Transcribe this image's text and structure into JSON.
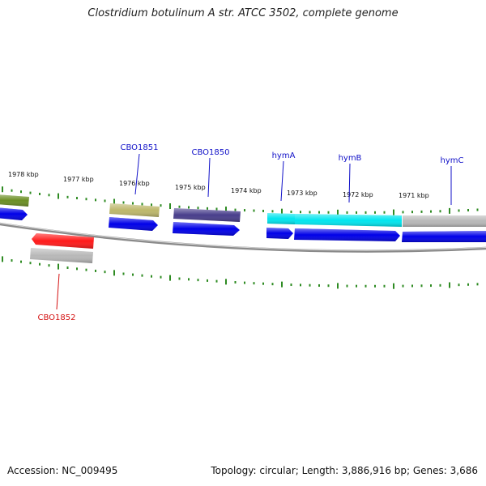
{
  "title": "Clostridium botulinum A str. ATCC 3502, complete genome",
  "footer": {
    "accession": "Accession: NC_009495",
    "summary": "Topology: circular; Length: 3,886,916 bp; Genes: 3,686"
  },
  "scale": {
    "ticks": [
      "1978 kbp",
      "1977 kbp",
      "1976 kbp",
      "1975 kbp",
      "1974 kbp",
      "1973 kbp",
      "1972 kbp",
      "1971 kbp"
    ]
  },
  "genes": {
    "labels": [
      "CBO1851",
      "CBO1850",
      "hymA",
      "hymB",
      "hymC",
      "CBO1852"
    ]
  },
  "colors": {
    "backbone": "#8a8a8a",
    "tick": "#2e8b22",
    "cds": "#0000e8",
    "label_blue": "#1010c8",
    "label_red": "#d41010",
    "olive_green": "#6b8e23",
    "khaki": "#bdb76b",
    "dark_slate_blue": "#483d8b",
    "cyan": "#00e5ee",
    "gray": "#b8b8b8",
    "red": "#ff1a1a"
  }
}
